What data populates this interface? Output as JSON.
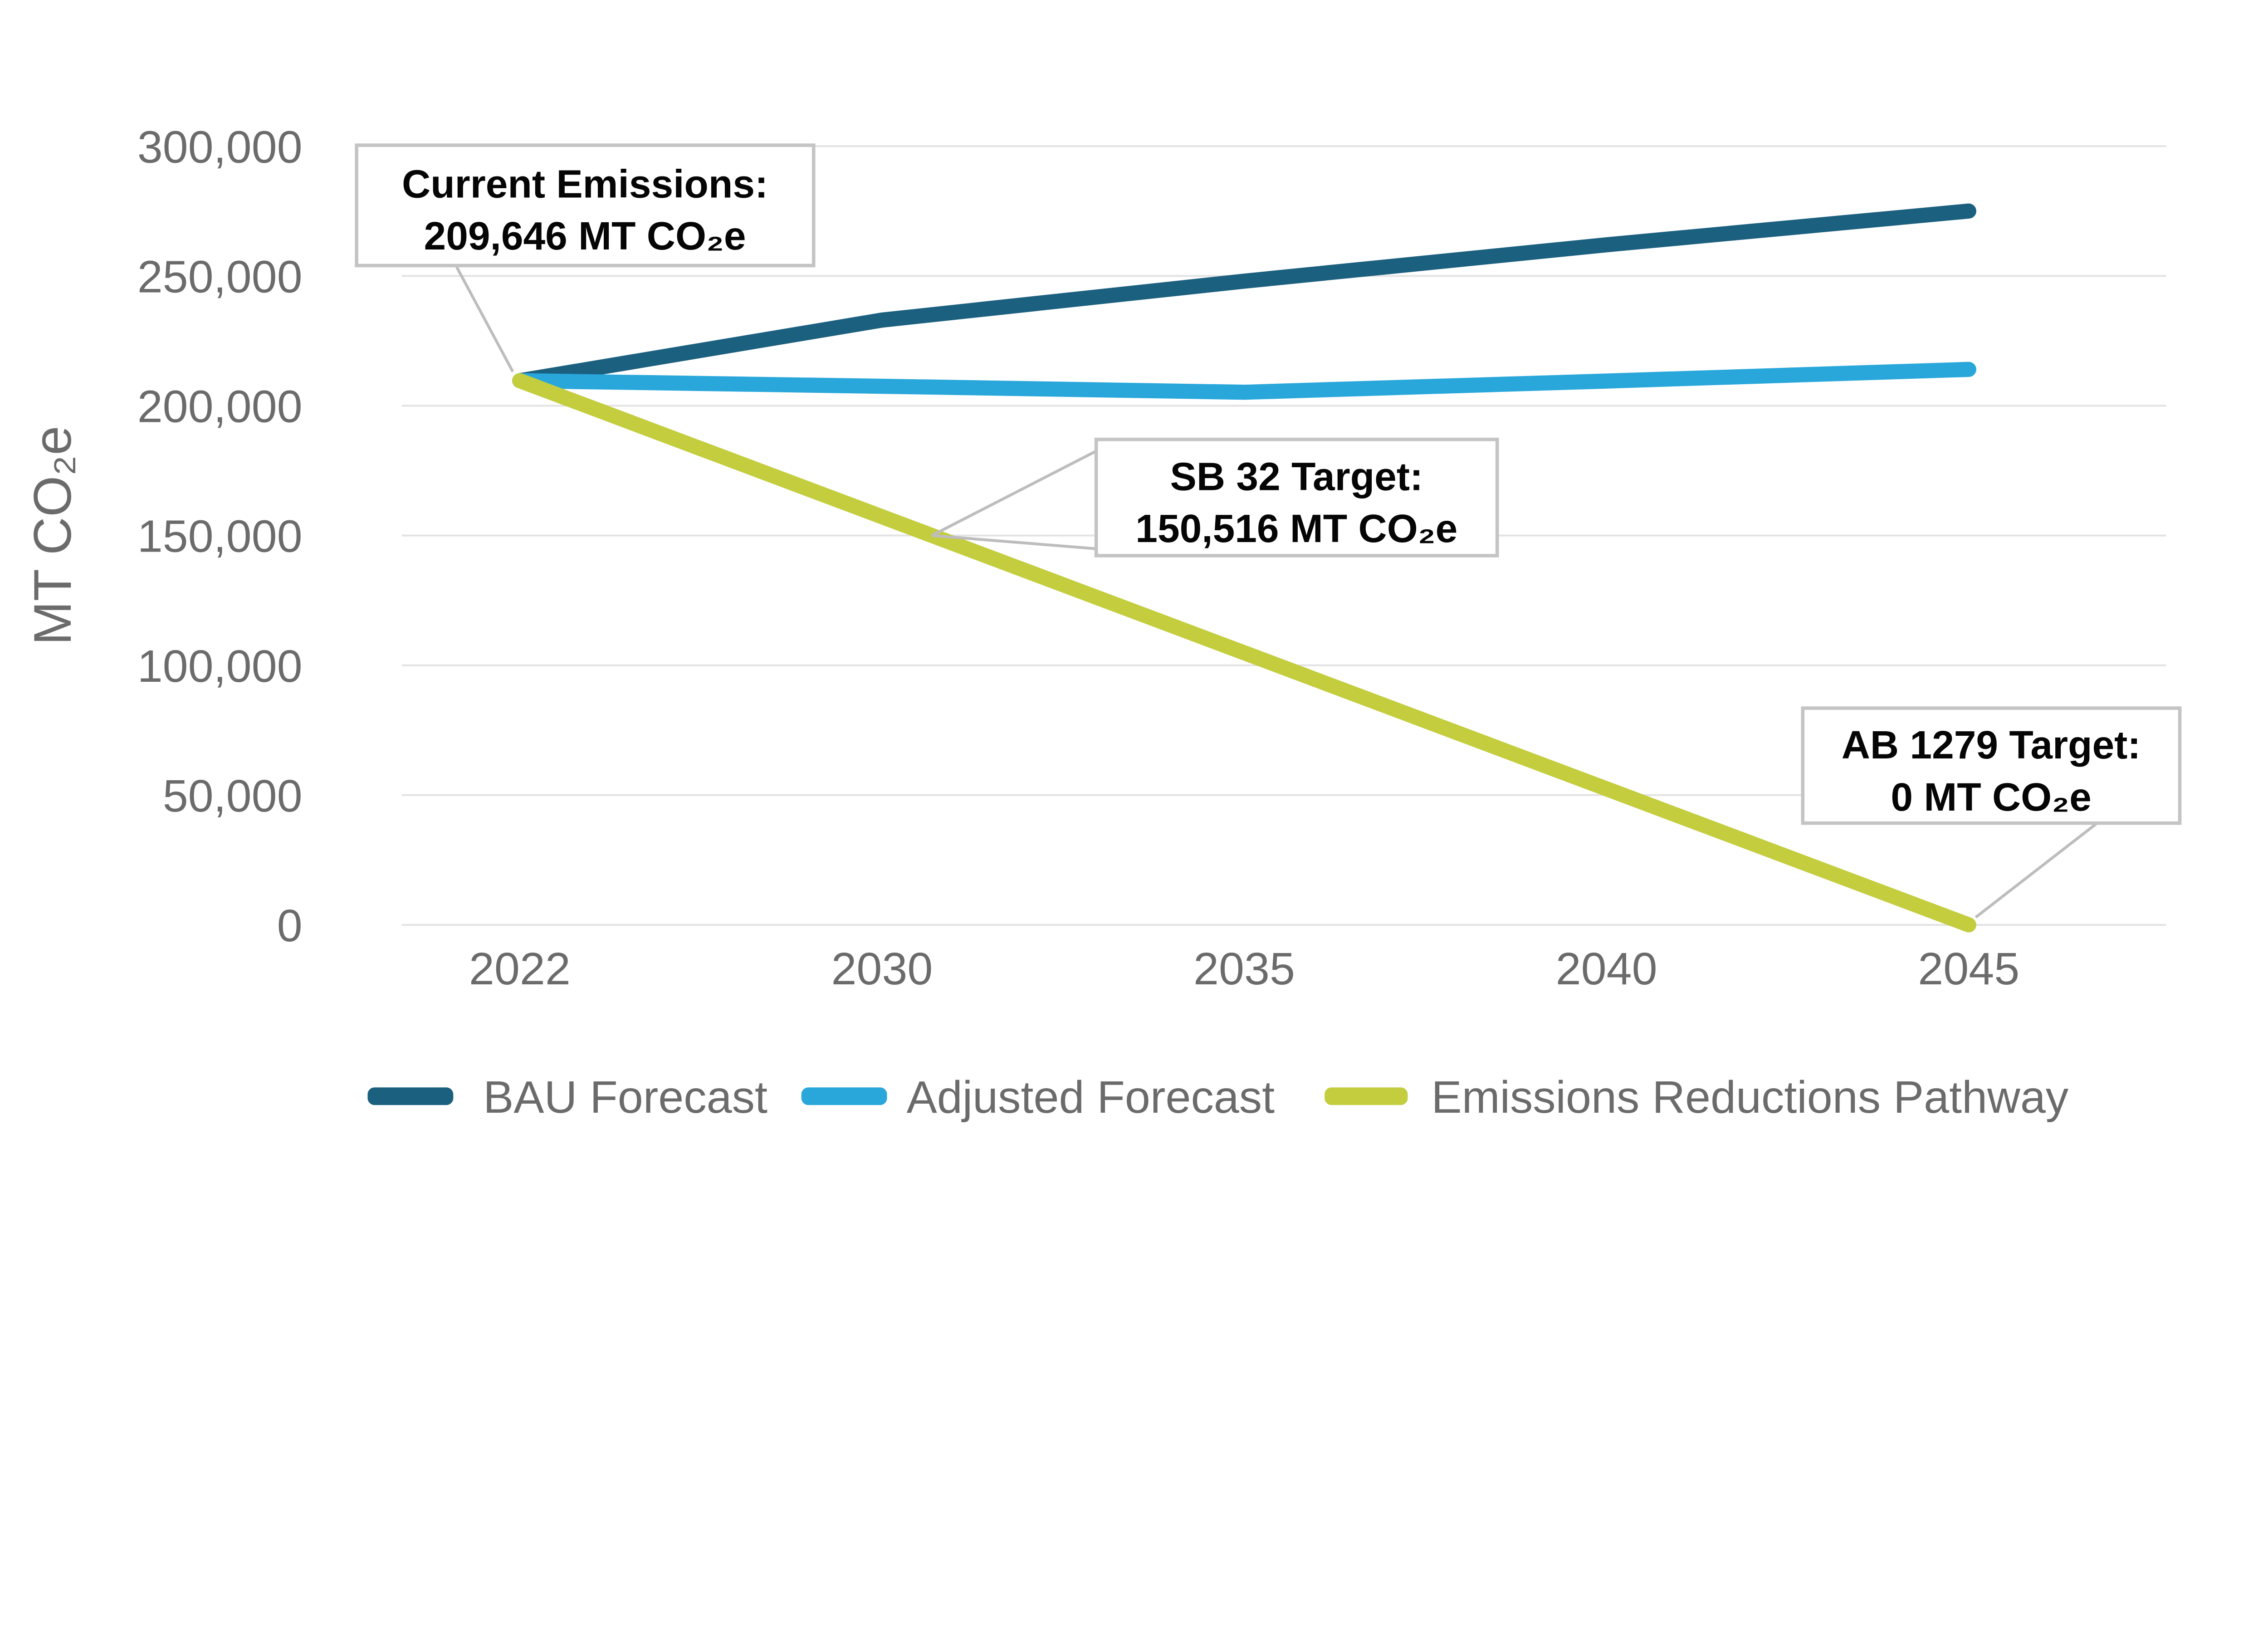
{
  "chart_data": {
    "type": "line",
    "title": "",
    "categories": [
      "2022",
      "2030",
      "2035",
      "2040",
      "2045"
    ],
    "series": [
      {
        "name": "BAU Forecast",
        "color": "#1C6080",
        "values": [
          209646,
          233000,
          248000,
          262000,
          275000
        ]
      },
      {
        "name": "Adjusted Forecast",
        "color": "#29A7DB",
        "values": [
          209646,
          207500,
          205200,
          209500,
          214000
        ]
      },
      {
        "name": "Emissions Reductions Pathway",
        "color": "#C3CD3E",
        "values": [
          209646,
          157234,
          104823,
          52411,
          0
        ]
      }
    ],
    "xlabel": "",
    "ylabel": "MT CO₂e",
    "ylim": [
      0,
      300000
    ],
    "y_ticks": [
      "300,000",
      "250,000",
      "200,000",
      "150,000",
      "100,000",
      "50,000",
      "0"
    ],
    "y_tick_values": [
      300000,
      250000,
      200000,
      150000,
      100000,
      50000,
      0
    ],
    "grid": "horizontal gridlines only",
    "legend_position": "bottom",
    "annotations": [
      {
        "line1": "Current Emissions:",
        "line2": "209,646 MT CO₂e",
        "target": "start of all series at 2022"
      },
      {
        "line1": "SB 32 Target:",
        "line2": "150,516 MT CO₂e",
        "target": "Emissions Reductions Pathway at 150,516 MT CO₂e"
      },
      {
        "line1": "AB 1279 Target:",
        "line2": "0 MT CO₂e",
        "target": "Emissions Reductions Pathway at 2045"
      }
    ],
    "legend": [
      "BAU Forecast",
      "Adjusted Forecast",
      "Emissions Reductions Pathway"
    ]
  },
  "colors": {
    "background": "#FFFFFF",
    "bau_forecast": "#1C6080",
    "adjusted_forecast": "#29A7DB",
    "emissions_reductions_pathway": "#C3CD3E",
    "gridline": "#E3E3E3",
    "tick_text": "#6B6B6B",
    "annotation_border": "#C4C4C4",
    "annotation_text": "#050505",
    "leader_line": "#BDBDBD"
  }
}
